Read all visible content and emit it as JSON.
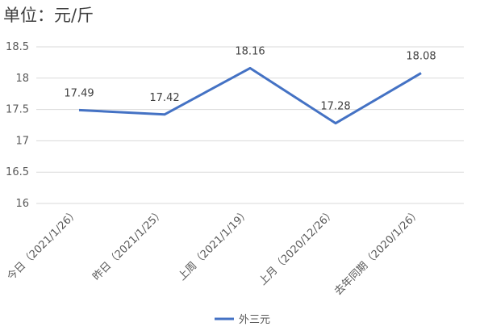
{
  "chart_data": {
    "type": "line",
    "unit_label": "单位：元/斤",
    "categories": [
      "今日（2021/1/26）",
      "昨日（2021/1/25）",
      "上周（2021/1/19）",
      "上月（2020/12/26）",
      "去年同期（2020/1/26）"
    ],
    "series": [
      {
        "name": "外三元",
        "values": [
          17.49,
          17.42,
          18.16,
          17.28,
          18.08
        ],
        "color": "#4472C4"
      }
    ],
    "data_labels": [
      "17.49",
      "17.42",
      "18.16",
      "17.28",
      "18.08"
    ],
    "yticks": [
      "16",
      "16.5",
      "17",
      "17.5",
      "18",
      "18.5"
    ],
    "ylim": [
      16,
      18.5
    ],
    "grid": true,
    "legend_position": "bottom"
  }
}
